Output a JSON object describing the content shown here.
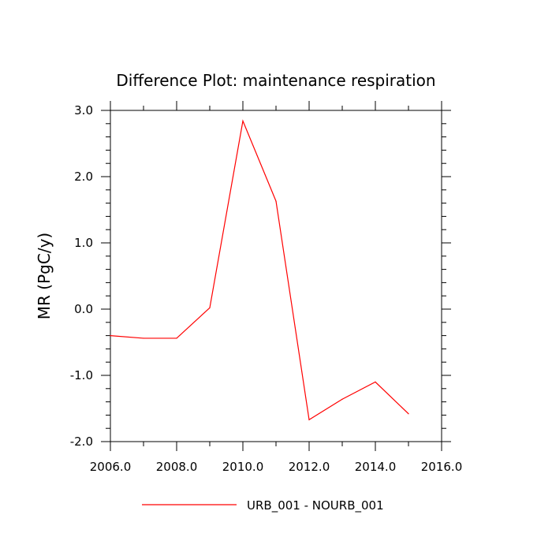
{
  "chart_data": {
    "type": "line",
    "title": "Difference Plot: maintenance respiration",
    "xlabel": "",
    "ylabel": "MR  (PgC/y)",
    "xlim": [
      2006,
      2016
    ],
    "ylim": [
      -2.0,
      3.0
    ],
    "xticks": [
      "2006.0",
      "2008.0",
      "2010.0",
      "2012.0",
      "2014.0",
      "2016.0"
    ],
    "yticks": [
      "3.0",
      "2.0",
      "1.0",
      "0.0",
      "-1.0",
      "-2.0"
    ],
    "grid": false,
    "legend_position": "bottom-center",
    "x": [
      2006,
      2007,
      2008,
      2009,
      2010,
      2011,
      2012,
      2013,
      2014,
      2015
    ],
    "series": [
      {
        "name": "URB_001 - NOURB_001",
        "color": "#ff0000",
        "values": [
          -0.4,
          -0.44,
          -0.44,
          0.02,
          2.84,
          1.63,
          -1.67,
          -1.36,
          -1.1,
          -1.58
        ]
      }
    ]
  }
}
